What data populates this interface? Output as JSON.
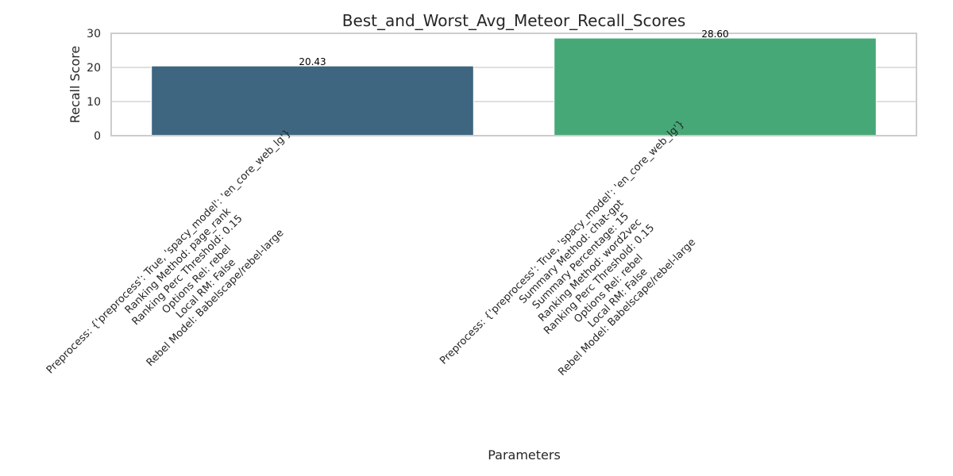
{
  "chart_data": {
    "type": "bar",
    "title": "Best_and_Worst_Avg_Meteor_Recall_Scores",
    "xlabel": "Parameters",
    "ylabel": "Recall Score",
    "ylim": [
      0,
      30
    ],
    "yticks": [
      0,
      10,
      20,
      30
    ],
    "grid": true,
    "legend": "none",
    "categories": [
      [
        "Preprocess: {'preprocess': True, 'spacy_model': 'en_core_web_lg'}",
        "Ranking Method: page_rank",
        "Ranking Perc Threshold: 0.15",
        "Options Rel: rebel",
        "Local RM: False",
        "Rebel Model: Babelscape/rebel-large"
      ],
      [
        "Preprocess: {'preprocess': True, 'spacy_model': 'en_core_web_lg'}",
        "Summary Method: chat-gpt",
        "Summary Percentage: 15",
        "Ranking Method: word2vec",
        "Ranking Perc Threshold: 0.15",
        "Options Rel: rebel",
        "Local RM: False",
        "Rebel Model: Babelscape/rebel-large"
      ]
    ],
    "values": [
      20.43,
      28.6
    ],
    "data_labels": [
      "20.43",
      "28.60"
    ],
    "colors": [
      "#3e6681",
      "#46a877"
    ]
  }
}
